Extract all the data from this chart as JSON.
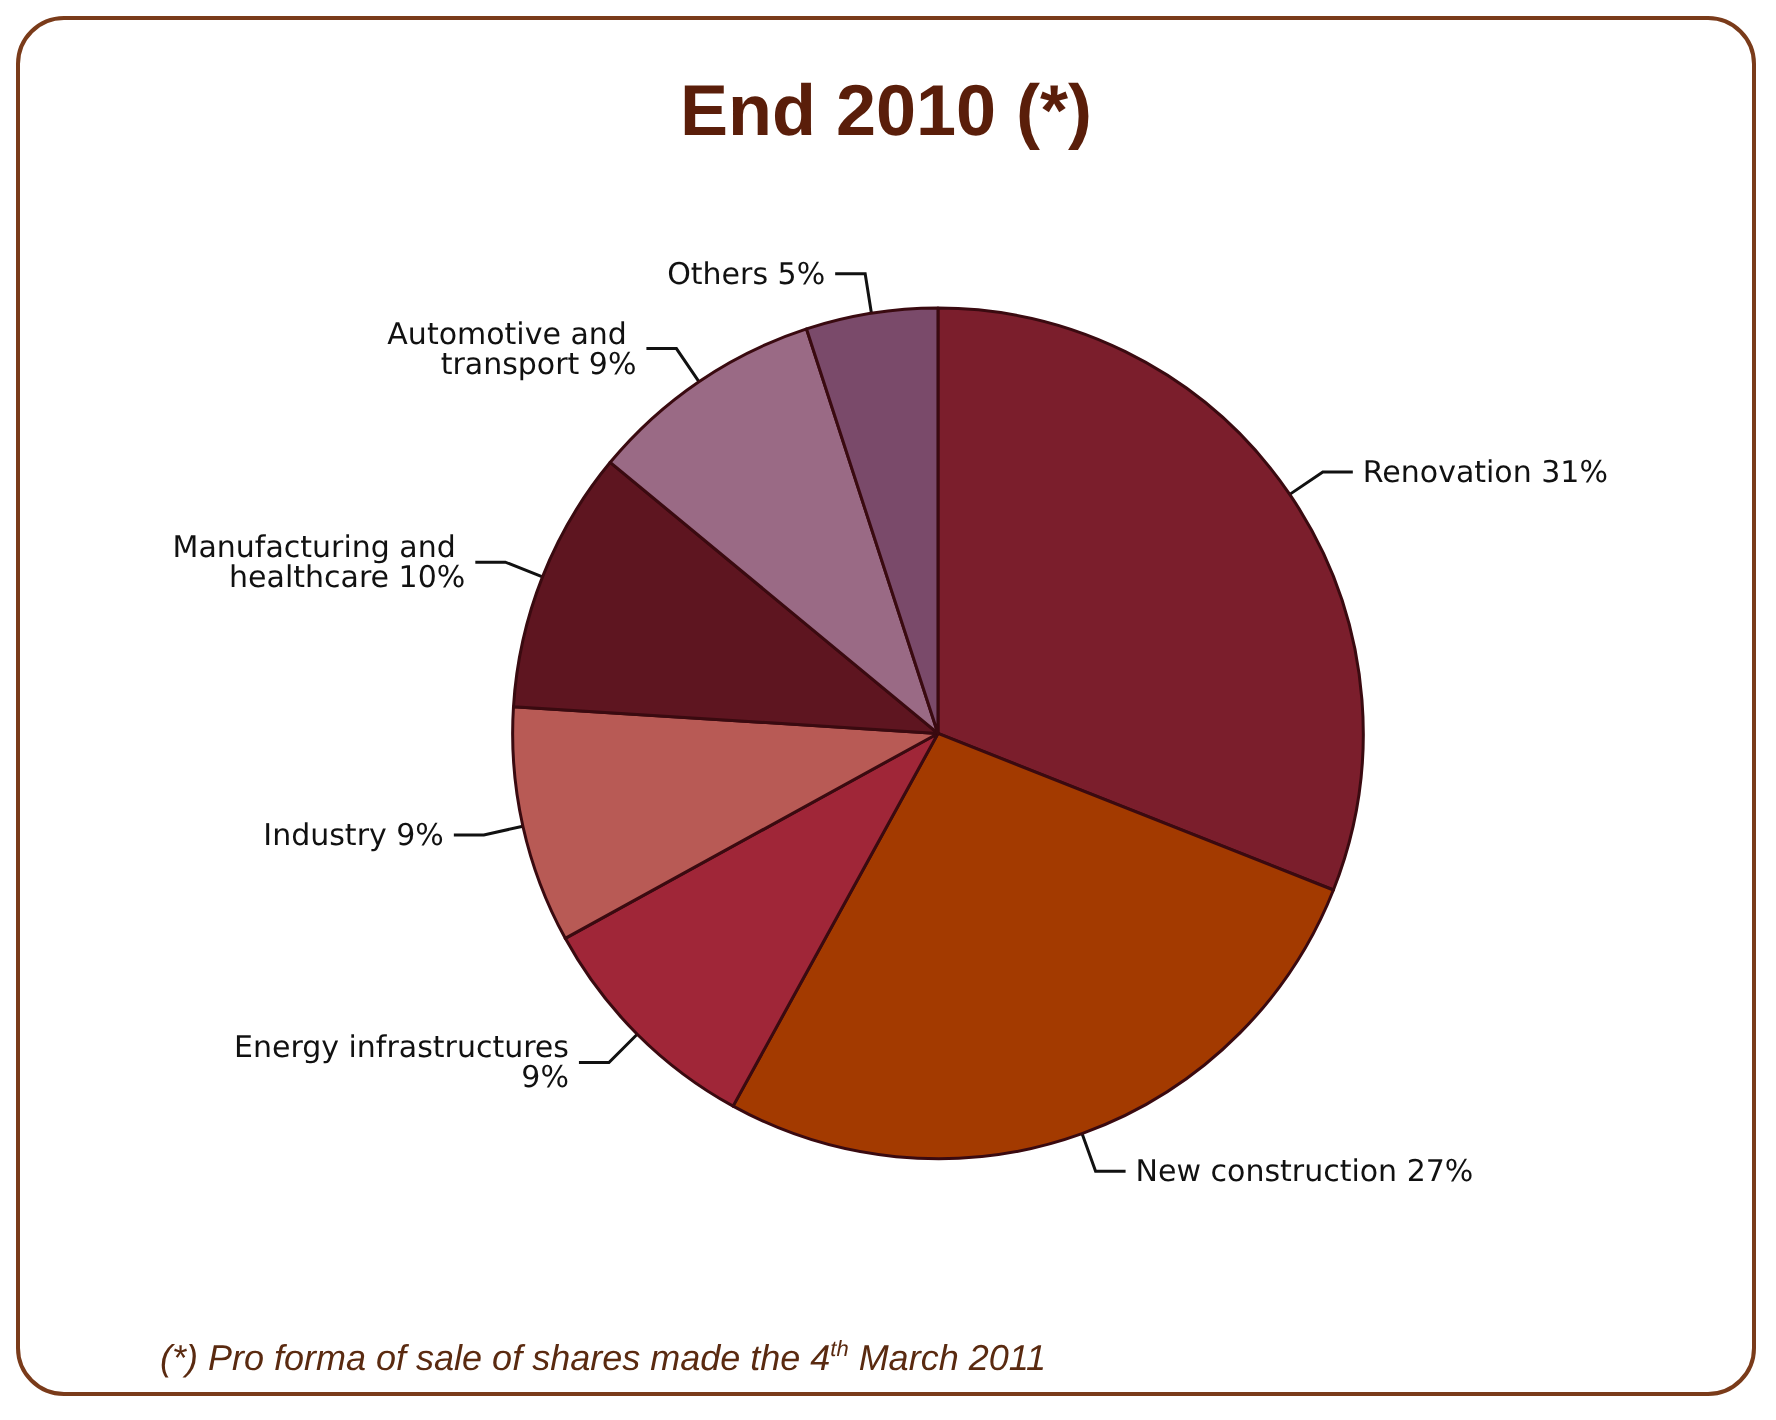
{
  "chart_data": {
    "type": "pie",
    "title": "End 2010 (*)",
    "categories": [
      "Renovation",
      "New construction",
      "Energy infrastructures",
      "Industry",
      "Manufacturing and healthcare",
      "Automotive and transport",
      "Others"
    ],
    "values": [
      31,
      27,
      9,
      9,
      10,
      9,
      5
    ],
    "colors": [
      "#7b1e2c",
      "#a33a00",
      "#a02638",
      "#b85a55",
      "#5e1520",
      "#9a6a85",
      "#7a4a6a"
    ],
    "value_labels": [
      "31%",
      "27%",
      "9%",
      "9%",
      "10%",
      "9%",
      "5%"
    ],
    "legend": false,
    "annotations": [
      "(*) Pro forma of sale of shares made the 4$^{th}$ March 2011"
    ]
  }
}
